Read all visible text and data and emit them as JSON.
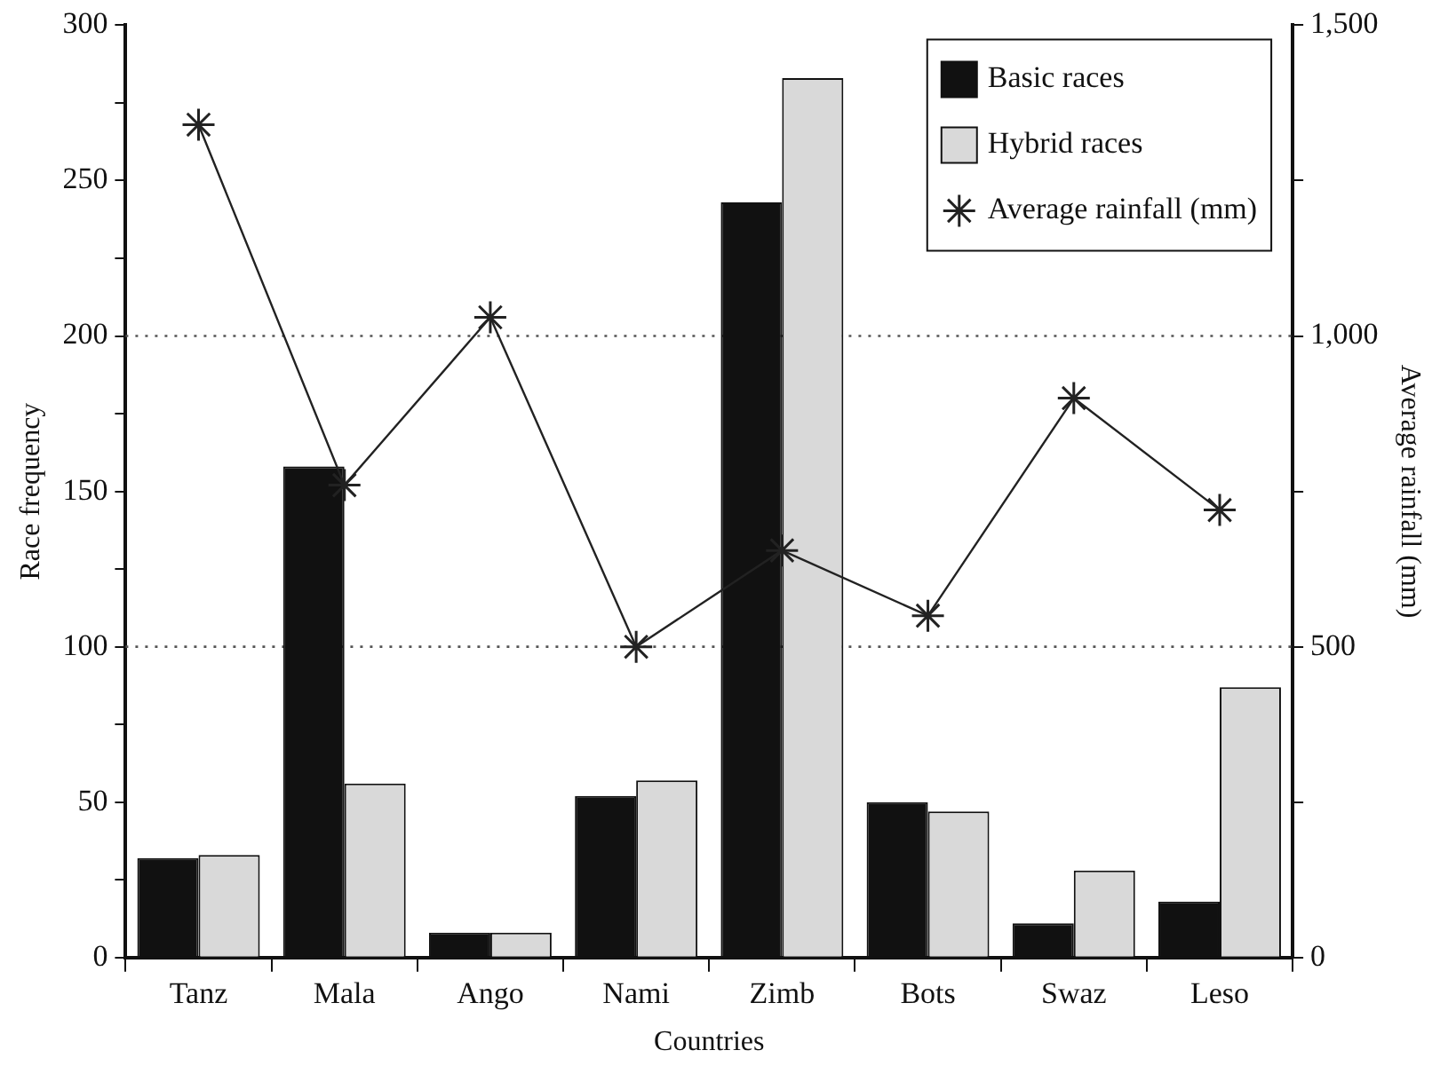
{
  "chart_data": {
    "type": "bar",
    "xlabel": "Countries",
    "ylabel": "Race frequency",
    "y2label": "Average rainfall (mm)",
    "categories": [
      "Tanz",
      "Mala",
      "Ango",
      "Nami",
      "Zimb",
      "Bots",
      "Swaz",
      "Leso"
    ],
    "series": [
      {
        "name": "Basic races",
        "color": "#111111",
        "values": [
          32,
          158,
          8,
          52,
          243,
          50,
          11,
          18
        ]
      },
      {
        "name": "Hybrid races",
        "color": "#d9d9d9",
        "values": [
          33,
          56,
          8,
          57,
          283,
          47,
          28,
          87
        ]
      },
      {
        "name": "Average rainfall (mm)",
        "type": "line",
        "axis": "y2",
        "color": "#222222",
        "marker": "cross",
        "line_style": "solid",
        "values": [
          1340,
          760,
          1030,
          500,
          655,
          550,
          900,
          720
        ]
      }
    ],
    "ylim": [
      0,
      300
    ],
    "yticks": [
      0,
      {
        "value": 25,
        "label": null
      },
      50,
      {
        "value": 75,
        "label": null
      },
      100,
      {
        "value": 125,
        "label": null
      },
      150,
      {
        "value": 175,
        "label": null
      },
      200,
      {
        "value": 225,
        "label": null
      },
      250,
      {
        "value": 275,
        "label": null
      },
      300
    ],
    "y2lim": [
      0,
      1500
    ],
    "y2ticks": [
      0,
      {
        "value": 250,
        "label": null
      },
      500,
      {
        "value": 750,
        "label": null
      },
      {
        "value": 1000,
        "label": "1,000"
      },
      {
        "value": 1250,
        "label": null
      },
      {
        "value": 1500,
        "label": "1,500"
      }
    ],
    "ref_lines": [
      {
        "axis": "y",
        "value": 100,
        "color": "#555555",
        "line_style": "dotted"
      },
      {
        "axis": "y",
        "value": 200,
        "color": "#555555",
        "line_style": "dotted"
      }
    ],
    "legend": "top right"
  }
}
